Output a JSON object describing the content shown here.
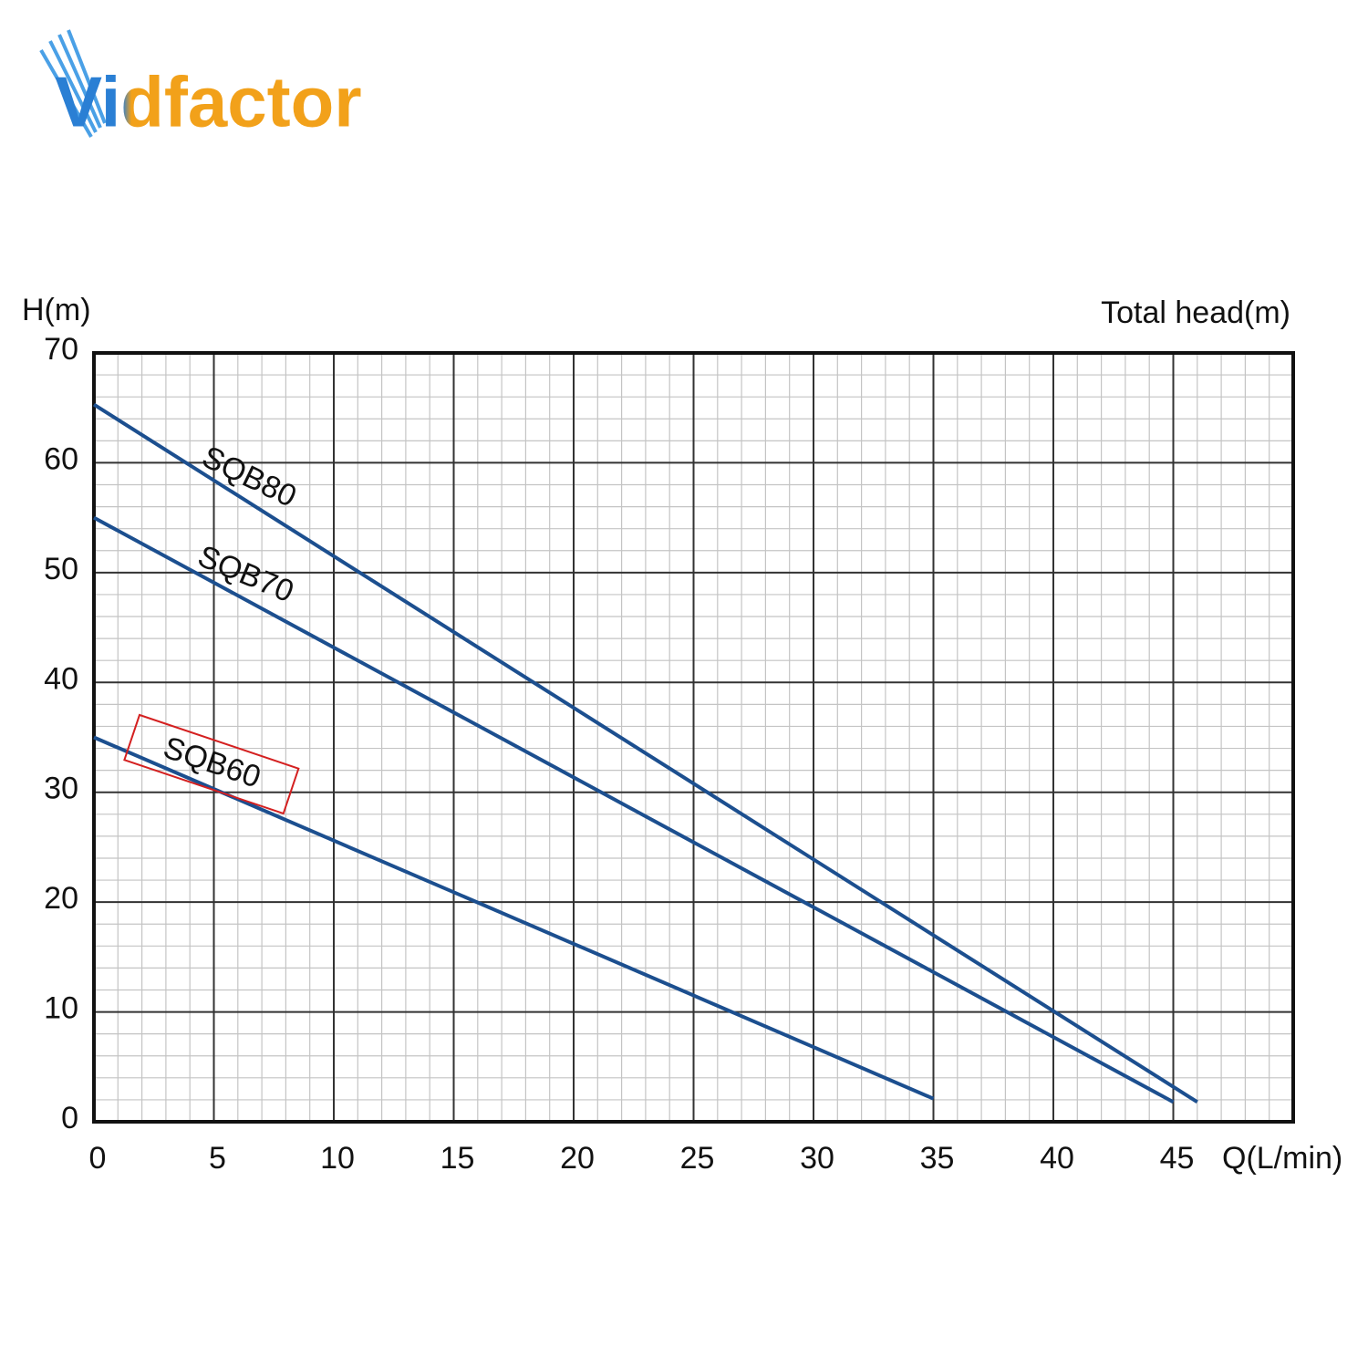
{
  "logo": "Vidfactor",
  "chart_data": {
    "type": "line",
    "y_label": "H(m)",
    "y_title": "Total head(m)",
    "x_label": "Q(L/min)",
    "xlim": [
      0,
      50
    ],
    "ylim": [
      0,
      70
    ],
    "xticks": [
      0,
      5,
      10,
      15,
      20,
      25,
      30,
      35,
      40,
      45
    ],
    "yticks": [
      0,
      10,
      20,
      30,
      40,
      50,
      60,
      70
    ],
    "grid": true,
    "series": [
      {
        "name": "SQB80",
        "color": "#1c4f8f",
        "x": [
          0,
          46
        ],
        "values": [
          65.3,
          1.8
        ]
      },
      {
        "name": "SQB70",
        "color": "#1c4f8f",
        "x": [
          0,
          45
        ],
        "values": [
          55,
          1.8
        ]
      },
      {
        "name": "SQB60",
        "color": "#1c4f8f",
        "x": [
          0,
          35
        ],
        "values": [
          35,
          2.1
        ],
        "highlight": "#d42020"
      }
    ]
  }
}
